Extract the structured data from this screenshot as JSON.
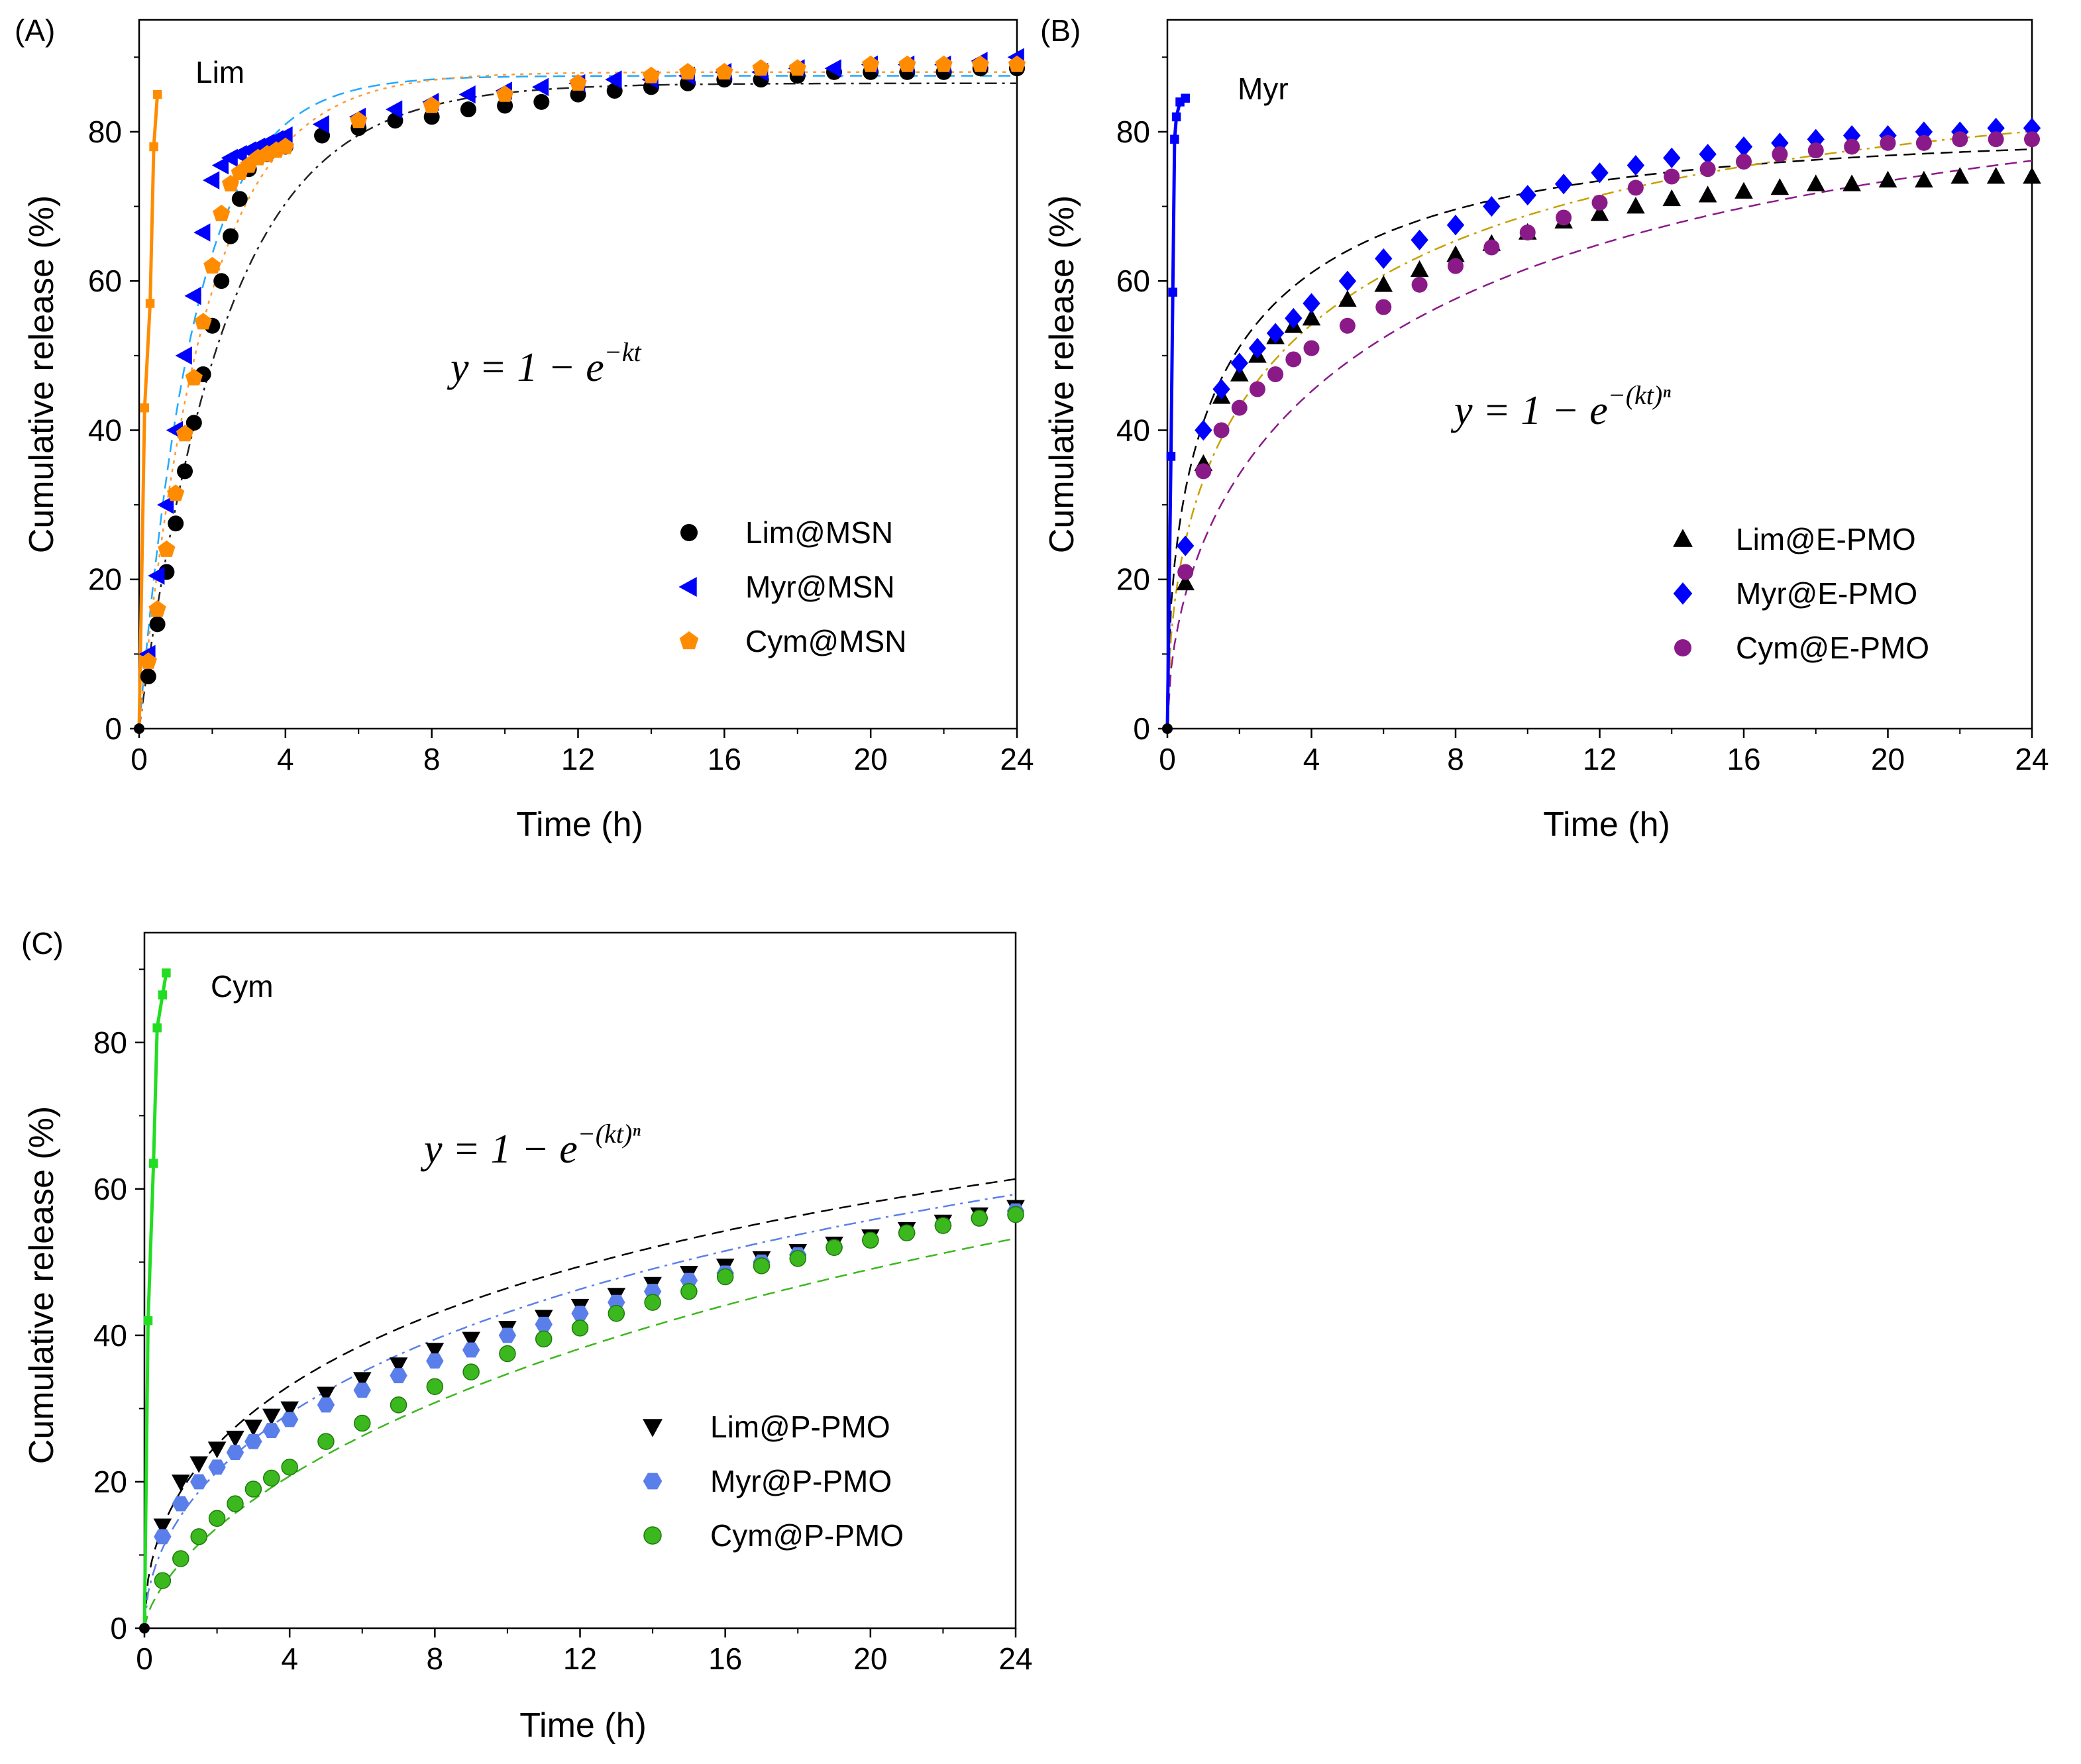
{
  "chart_data": [
    {
      "panel_label": "(A)",
      "type": "scatter",
      "xlabel": "Time (h)",
      "ylabel": "Cumulative release (%)",
      "xlim": [
        0,
        24
      ],
      "ylim": [
        0,
        95
      ],
      "xticks": [
        "0",
        "4",
        "8",
        "12",
        "16",
        "20",
        "24"
      ],
      "yticks": [
        "0",
        "20",
        "40",
        "60",
        "80"
      ],
      "formula": {
        "base": "y = 1 − e",
        "sup": "−kt"
      },
      "annotation": {
        "text": "Lim",
        "color": "#ff8c00"
      },
      "legend_position": "lower-right",
      "free_compound": {
        "name": "Lim",
        "color": "#ff8c00",
        "x": [
          0,
          0.15,
          0.3,
          0.4,
          0.5
        ],
        "y": [
          0,
          43,
          57,
          78,
          85
        ]
      },
      "series": [
        {
          "name": "Lim@MSN",
          "color": "#000000",
          "marker": "circle",
          "fit_style": "dash-dot",
          "fit_k": 0.42,
          "fit_max": 86.5,
          "x": [
            0.25,
            0.5,
            0.75,
            1,
            1.25,
            1.5,
            1.75,
            2,
            2.25,
            2.5,
            2.75,
            3,
            3.5,
            4,
            5,
            6,
            7,
            8,
            9,
            10,
            11,
            12,
            13,
            14,
            15,
            16,
            17,
            18,
            19,
            20,
            21,
            22,
            23,
            24
          ],
          "values": [
            7,
            14,
            21,
            27.5,
            34.5,
            41,
            47.5,
            54,
            60,
            66,
            71,
            75,
            77,
            78,
            79.5,
            80.5,
            81.5,
            82,
            83,
            83.5,
            84,
            85,
            85.5,
            86,
            86.5,
            87,
            87,
            87.5,
            88,
            88,
            88,
            88,
            88.5,
            88.5
          ]
        },
        {
          "name": "Myr@MSN",
          "color": "#0000ff",
          "marker": "triangle-left",
          "fit_style": "dashed",
          "fit_k": 0.65,
          "fit_max": 87.5,
          "x": [
            0.25,
            0.5,
            0.75,
            1,
            1.25,
            1.5,
            1.75,
            2,
            2.25,
            2.5,
            2.75,
            3,
            3.25,
            3.5,
            3.75,
            4,
            5,
            6,
            7,
            8,
            9,
            10,
            11,
            12,
            13,
            14,
            15,
            16,
            17,
            18,
            19,
            20,
            21,
            22,
            23,
            24
          ],
          "values": [
            10,
            20.5,
            30,
            40,
            50,
            58,
            66.5,
            73.5,
            75.5,
            76.5,
            77,
            77.5,
            78,
            78.5,
            79,
            79.5,
            81,
            82,
            83,
            84,
            85,
            85.5,
            86,
            86.5,
            87,
            87,
            87.5,
            88,
            88,
            88.5,
            88.5,
            89,
            89,
            89,
            89.5,
            90
          ]
        },
        {
          "name": "Cym@MSN",
          "color": "#ff8c00",
          "marker": "pentagon",
          "fit_style": "dotted",
          "fit_k": 0.55,
          "fit_max": 88,
          "x": [
            0.25,
            0.5,
            0.75,
            1,
            1.25,
            1.5,
            1.75,
            2,
            2.25,
            2.5,
            2.75,
            3,
            3.25,
            3.5,
            3.75,
            4,
            6,
            8,
            10,
            12,
            14,
            15,
            16,
            17,
            18,
            20,
            21,
            22,
            23,
            24
          ],
          "values": [
            9,
            16,
            24,
            31.5,
            39.5,
            47,
            54.5,
            62,
            69,
            73,
            74.5,
            75.5,
            76.5,
            77,
            77.5,
            78,
            81.5,
            83.5,
            85,
            86.5,
            87.5,
            88,
            88,
            88.5,
            88.5,
            89,
            89,
            89,
            89,
            89
          ]
        }
      ]
    },
    {
      "panel_label": "(B)",
      "type": "scatter",
      "xlabel": "Time (h)",
      "ylabel": "Cumulative release (%)",
      "xlim": [
        0,
        24
      ],
      "ylim": [
        0,
        95
      ],
      "xticks": [
        "0",
        "4",
        "8",
        "12",
        "16",
        "20",
        "24"
      ],
      "yticks": [
        "0",
        "20",
        "40",
        "60",
        "80"
      ],
      "formula": {
        "base": "y = 1 − e",
        "sup": "−(kt)ⁿ"
      },
      "annotation": {
        "text": "Myr",
        "color": "#0000ff"
      },
      "legend_position": "lower-right",
      "free_compound": {
        "name": "Myr",
        "color": "#0000ff",
        "x": [
          0,
          0.1,
          0.15,
          0.2,
          0.25,
          0.35,
          0.5
        ],
        "y": [
          0,
          36.5,
          58.5,
          79,
          82,
          84,
          84.5
        ]
      },
      "series": [
        {
          "name": "Lim@E-PMO",
          "color": "#000000",
          "marker": "triangle-up",
          "fit_style": "dashed",
          "fit_k": 0.52,
          "fit_n": 0.5,
          "fit_max": 80,
          "x": [
            0.5,
            1,
            1.5,
            2,
            2.5,
            3,
            3.5,
            4,
            5,
            6,
            7,
            8,
            9,
            10,
            11,
            12,
            13,
            14,
            15,
            16,
            17,
            18,
            19,
            20,
            21,
            22,
            23,
            24
          ],
          "values": [
            19.5,
            35.5,
            44.5,
            47.5,
            50,
            52.5,
            54,
            55,
            57.5,
            59.5,
            61.5,
            63.5,
            65,
            66.5,
            68,
            69,
            70,
            71,
            71.5,
            72,
            72.5,
            73,
            73,
            73.5,
            73.5,
            74,
            74,
            74
          ]
        },
        {
          "name": "Myr@E-PMO",
          "color": "#0000ff",
          "marker": "diamond",
          "fit_style": "dash-dot-gold",
          "fit_k": 0.22,
          "fit_n": 0.5,
          "fit_max": 89,
          "x": [
            0.5,
            1,
            1.5,
            2,
            2.5,
            3,
            3.5,
            4,
            5,
            6,
            7,
            8,
            9,
            10,
            11,
            12,
            13,
            14,
            15,
            16,
            17,
            18,
            19,
            20,
            21,
            22,
            23,
            24
          ],
          "values": [
            24.5,
            40,
            45.5,
            49,
            51,
            53,
            55,
            57,
            60,
            63,
            65.5,
            67.5,
            70,
            71.5,
            73,
            74.5,
            75.5,
            76.5,
            77,
            78,
            78.5,
            79,
            79.5,
            79.5,
            80,
            80,
            80.5,
            80.5
          ]
        },
        {
          "name": "Cym@E-PMO",
          "color": "#8b1a89",
          "marker": "circle",
          "fit_style": "dashed-purple",
          "fit_k": 0.13,
          "fit_n": 0.55,
          "fit_max": 90,
          "x": [
            0.5,
            1,
            1.5,
            2,
            2.5,
            3,
            3.5,
            4,
            5,
            6,
            7,
            8,
            9,
            10,
            11,
            12,
            13,
            14,
            15,
            16,
            17,
            18,
            19,
            20,
            21,
            22,
            23,
            24
          ],
          "values": [
            21,
            34.5,
            40,
            43,
            45.5,
            47.5,
            49.5,
            51,
            54,
            56.5,
            59.5,
            62,
            64.5,
            66.5,
            68.5,
            70.5,
            72.5,
            74,
            75,
            76,
            77,
            77.5,
            78,
            78.5,
            78.5,
            79,
            79,
            79
          ]
        }
      ]
    },
    {
      "panel_label": "(C)",
      "type": "scatter",
      "xlabel": "Time (h)",
      "ylabel": "Cumulative release (%)",
      "xlim": [
        0,
        24
      ],
      "ylim": [
        0,
        95
      ],
      "xticks": [
        "0",
        "4",
        "8",
        "12",
        "16",
        "20",
        "24"
      ],
      "yticks": [
        "0",
        "20",
        "40",
        "60",
        "80"
      ],
      "formula": {
        "base": "y = 1 − e",
        "sup": "−(kt)ⁿ"
      },
      "annotation": {
        "text": "Cym",
        "color": "#22dd22"
      },
      "legend_position": "lower-right",
      "free_compound": {
        "name": "Cym",
        "color": "#22dd22",
        "x": [
          0,
          0.1,
          0.25,
          0.35,
          0.5,
          0.6
        ],
        "y": [
          0,
          42,
          63.5,
          82,
          86.5,
          89.5
        ]
      },
      "series": [
        {
          "name": "Lim@P-PMO",
          "color": "#000000",
          "marker": "triangle-down",
          "fit_style": "dashed",
          "fit_k": 0.0375,
          "fit_n": 0.48,
          "fit_max": 100,
          "x": [
            0.5,
            1,
            1.5,
            2,
            2.5,
            3,
            3.5,
            4,
            5,
            6,
            7,
            8,
            9,
            10,
            11,
            12,
            13,
            14,
            15,
            16,
            17,
            18,
            19,
            20,
            21,
            22,
            23,
            24
          ],
          "values": [
            14,
            20,
            22.5,
            24.5,
            26,
            27.5,
            29,
            30,
            32,
            34,
            36,
            38,
            39.5,
            41,
            42.5,
            44,
            45.5,
            47,
            48.5,
            49.5,
            50.5,
            51.5,
            52.5,
            53.5,
            54.5,
            55.5,
            56.5,
            57.5
          ]
        },
        {
          "name": "Myr@P-PMO",
          "color": "#5b7fea",
          "marker": "hexagon",
          "fit_style": "dash-dot",
          "fit_k": 0.034,
          "fit_n": 0.53,
          "fit_max": 100,
          "x": [
            0.5,
            1,
            1.5,
            2,
            2.5,
            3,
            3.5,
            4,
            5,
            6,
            7,
            8,
            9,
            10,
            11,
            12,
            13,
            14,
            15,
            16,
            17,
            18,
            19,
            20,
            21,
            22,
            23,
            24
          ],
          "values": [
            12.5,
            17,
            20,
            22,
            24,
            25.5,
            27,
            28.5,
            30.5,
            32.5,
            34.5,
            36.5,
            38,
            40,
            41.5,
            43,
            44.5,
            46,
            47.5,
            48.5,
            50,
            51,
            52,
            53,
            54,
            55,
            56,
            57
          ]
        },
        {
          "name": "Cym@P-PMO",
          "color": "#3cb81f",
          "marker": "sphere",
          "fit_style": "dashed",
          "fit_k": 0.0275,
          "fit_n": 0.66,
          "fit_max": 100,
          "x": [
            0.5,
            1,
            1.5,
            2,
            2.5,
            3,
            3.5,
            4,
            5,
            6,
            7,
            8,
            9,
            10,
            11,
            12,
            13,
            14,
            15,
            16,
            17,
            18,
            19,
            20,
            21,
            22,
            23,
            24
          ],
          "values": [
            6.5,
            9.5,
            12.5,
            15,
            17,
            19,
            20.5,
            22,
            25.5,
            28,
            30.5,
            33,
            35,
            37.5,
            39.5,
            41,
            43,
            44.5,
            46,
            48,
            49.5,
            50.5,
            52,
            53,
            54,
            55,
            56,
            56.5
          ]
        }
      ]
    }
  ]
}
